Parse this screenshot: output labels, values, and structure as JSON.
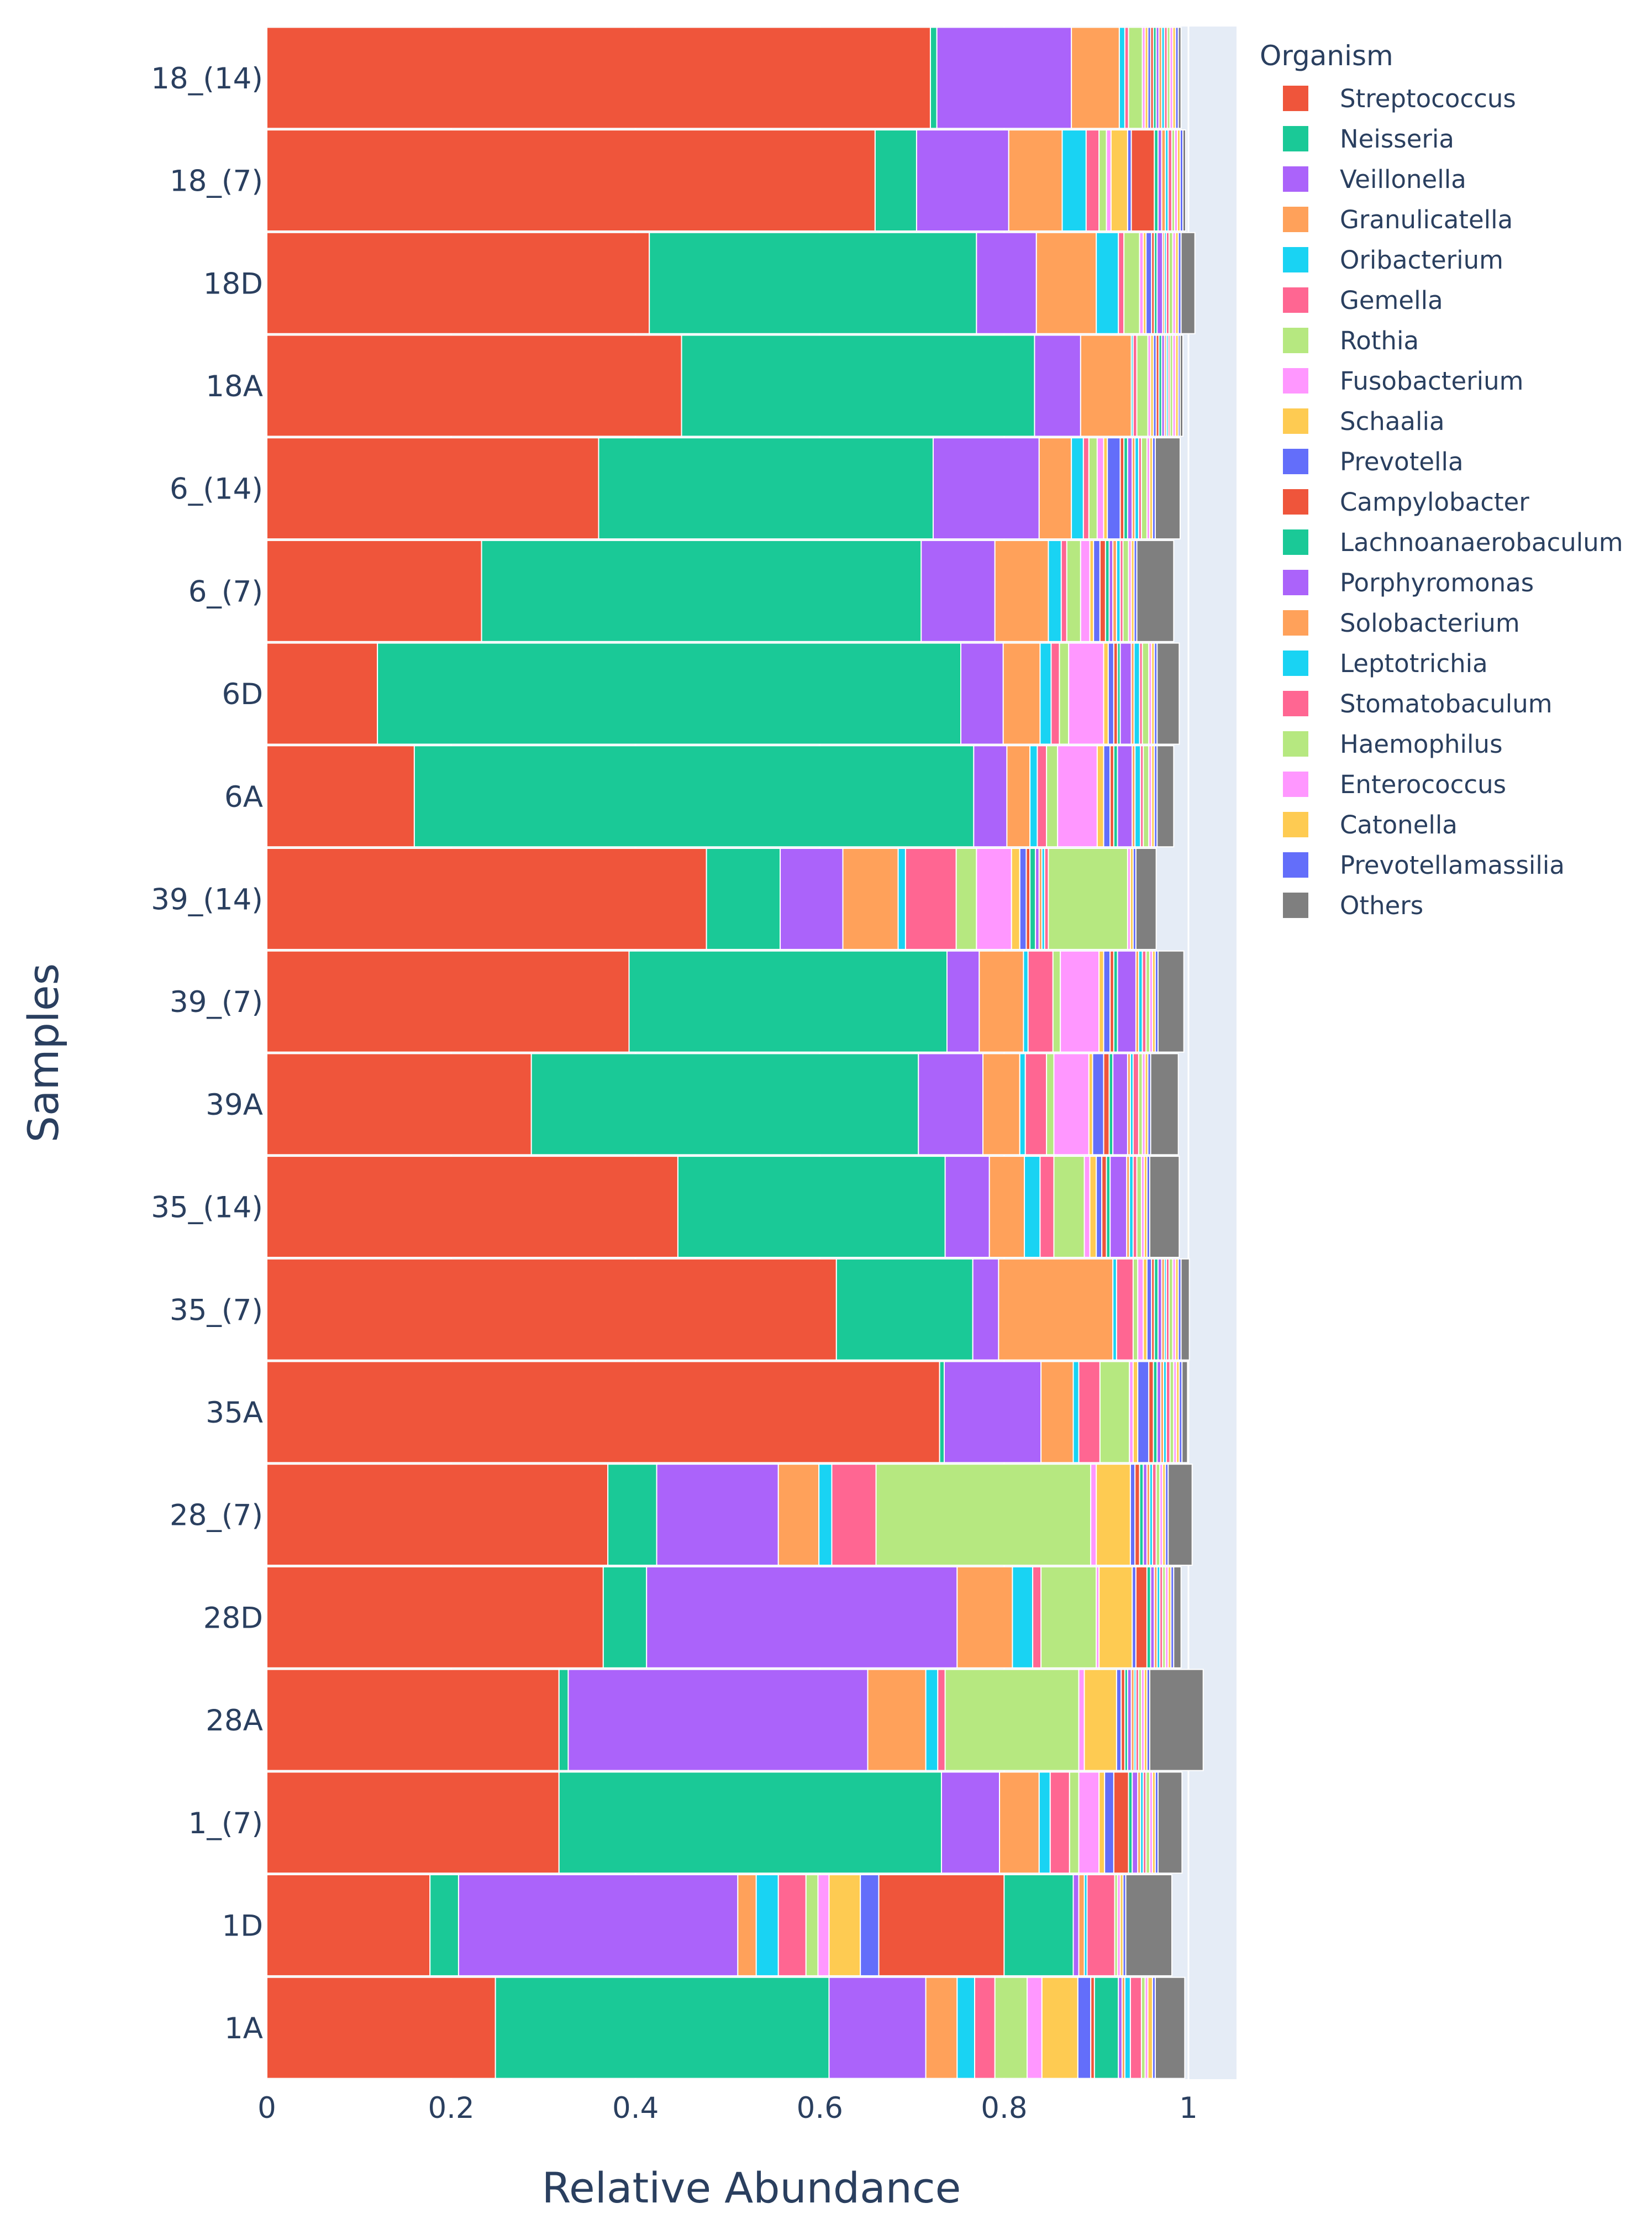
{
  "chart_data": {
    "type": "bar",
    "orientation": "horizontal",
    "stacked": true,
    "xlabel": "Relative Abundance",
    "ylabel": "Samples",
    "xlim": [
      0,
      1.05
    ],
    "xticks": [
      "0",
      "0.2",
      "0.4",
      "0.6",
      "0.8",
      "1"
    ],
    "xtick_values": [
      0,
      0.2,
      0.4,
      0.6,
      0.8,
      1
    ],
    "legend_title": "Organism",
    "legend_position": "right",
    "plot_background": "#e5ecf6",
    "categories": [
      "18_(14)",
      "18_(7)",
      "18D",
      "18A",
      "6_(14)",
      "6_(7)",
      "6D",
      "6A",
      "39_(14)",
      "39_(7)",
      "39A",
      "35_(14)",
      "35_(7)",
      "35A",
      "28_(7)",
      "28D",
      "28A",
      "1_(7)",
      "1D",
      "1A"
    ],
    "series": [
      {
        "name": "Streptococcus",
        "color": "#EF553B",
        "values": [
          0.72,
          0.66,
          0.415,
          0.45,
          0.36,
          0.233,
          0.12,
          0.16,
          0.477,
          0.393,
          0.287,
          0.446,
          0.618,
          0.73,
          0.37,
          0.365,
          0.317,
          0.317,
          0.177,
          0.248
        ]
      },
      {
        "name": "Neisseria",
        "color": "#1ac997",
        "values": [
          0.007,
          0.045,
          0.355,
          0.383,
          0.363,
          0.477,
          0.633,
          0.607,
          0.08,
          0.345,
          0.42,
          0.29,
          0.148,
          0.005,
          0.053,
          0.047,
          0.01,
          0.415,
          0.031,
          0.362
        ]
      },
      {
        "name": "Veillonella",
        "color": "#ab63fa",
        "values": [
          0.146,
          0.1,
          0.065,
          0.05,
          0.115,
          0.08,
          0.046,
          0.036,
          0.068,
          0.035,
          0.07,
          0.048,
          0.028,
          0.105,
          0.132,
          0.337,
          0.325,
          0.063,
          0.303,
          0.105
        ]
      },
      {
        "name": "Granulicatella",
        "color": "#FFA15A",
        "values": [
          0.052,
          0.058,
          0.065,
          0.055,
          0.035,
          0.058,
          0.04,
          0.025,
          0.06,
          0.048,
          0.04,
          0.038,
          0.124,
          0.035,
          0.044,
          0.06,
          0.063,
          0.043,
          0.02,
          0.034
        ]
      },
      {
        "name": "Oribacterium",
        "color": "#19d3f3",
        "values": [
          0.006,
          0.026,
          0.024,
          0.002,
          0.013,
          0.014,
          0.012,
          0.008,
          0.008,
          0.005,
          0.006,
          0.017,
          0.004,
          0.006,
          0.014,
          0.022,
          0.013,
          0.012,
          0.024,
          0.019
        ]
      },
      {
        "name": "Gemella",
        "color": "#FF6692",
        "values": [
          0.004,
          0.014,
          0.006,
          0.004,
          0.006,
          0.006,
          0.009,
          0.01,
          0.055,
          0.027,
          0.023,
          0.015,
          0.018,
          0.023,
          0.048,
          0.009,
          0.008,
          0.021,
          0.03,
          0.022
        ]
      },
      {
        "name": "Rothia",
        "color": "#B6E880",
        "values": [
          0.015,
          0.008,
          0.017,
          0.012,
          0.009,
          0.015,
          0.01,
          0.012,
          0.022,
          0.008,
          0.008,
          0.033,
          0.005,
          0.032,
          0.233,
          0.06,
          0.145,
          0.01,
          0.013,
          0.035
        ]
      },
      {
        "name": "Fusobacterium",
        "color": "#FF97FF",
        "values": [
          0.003,
          0.005,
          0.004,
          0.003,
          0.007,
          0.01,
          0.038,
          0.043,
          0.038,
          0.042,
          0.038,
          0.006,
          0.006,
          0.004,
          0.006,
          0.003,
          0.006,
          0.022,
          0.012,
          0.016
        ]
      },
      {
        "name": "Schaalia",
        "color": "#FECB52",
        "values": [
          0.003,
          0.018,
          0.003,
          0.003,
          0.004,
          0.004,
          0.005,
          0.007,
          0.009,
          0.005,
          0.004,
          0.007,
          0.004,
          0.005,
          0.037,
          0.036,
          0.035,
          0.006,
          0.034,
          0.039
        ]
      },
      {
        "name": "Prevotella",
        "color": "#636efa",
        "values": [
          0.003,
          0.004,
          0.006,
          0.003,
          0.014,
          0.007,
          0.006,
          0.007,
          0.007,
          0.007,
          0.012,
          0.006,
          0.005,
          0.012,
          0.005,
          0.004,
          0.005,
          0.01,
          0.02,
          0.014
        ]
      },
      {
        "name": "Campylobacter",
        "color": "#EF553B",
        "values": [
          0.003,
          0.025,
          0.003,
          0.003,
          0.004,
          0.006,
          0.004,
          0.004,
          0.004,
          0.004,
          0.006,
          0.005,
          0.003,
          0.005,
          0.005,
          0.012,
          0.004,
          0.016,
          0.136,
          0.004
        ]
      },
      {
        "name": "Lachnoanaerobaculum",
        "color": "#1ac997",
        "values": [
          0.003,
          0.004,
          0.003,
          0.003,
          0.004,
          0.004,
          0.003,
          0.004,
          0.006,
          0.004,
          0.004,
          0.004,
          0.004,
          0.004,
          0.004,
          0.004,
          0.003,
          0.004,
          0.075,
          0.026
        ]
      },
      {
        "name": "Porphyromonas",
        "color": "#ab63fa",
        "values": [
          0.003,
          0.004,
          0.006,
          0.003,
          0.005,
          0.004,
          0.012,
          0.016,
          0.004,
          0.02,
          0.016,
          0.018,
          0.004,
          0.004,
          0.004,
          0.004,
          0.004,
          0.006,
          0.006,
          0.004
        ]
      },
      {
        "name": "Solobacterium",
        "color": "#FFA15A",
        "values": [
          0.003,
          0.004,
          0.002,
          0.002,
          0.003,
          0.004,
          0.003,
          0.003,
          0.003,
          0.003,
          0.003,
          0.003,
          0.003,
          0.003,
          0.003,
          0.003,
          0.003,
          0.003,
          0.006,
          0.003
        ]
      },
      {
        "name": "Leptotrichia",
        "color": "#19d3f3",
        "values": [
          0.003,
          0.003,
          0.002,
          0.002,
          0.004,
          0.004,
          0.006,
          0.006,
          0.003,
          0.004,
          0.003,
          0.004,
          0.002,
          0.003,
          0.003,
          0.003,
          0.002,
          0.003,
          0.003,
          0.006
        ]
      },
      {
        "name": "Stomatobaculum",
        "color": "#FF6692",
        "values": [
          0.003,
          0.004,
          0.003,
          0.002,
          0.003,
          0.003,
          0.003,
          0.003,
          0.004,
          0.004,
          0.006,
          0.004,
          0.003,
          0.004,
          0.004,
          0.003,
          0.003,
          0.003,
          0.03,
          0.012
        ]
      },
      {
        "name": "Haemophilus",
        "color": "#B6E880",
        "values": [
          0.003,
          0.003,
          0.004,
          0.003,
          0.006,
          0.006,
          0.007,
          0.006,
          0.086,
          0.004,
          0.004,
          0.005,
          0.004,
          0.004,
          0.004,
          0.003,
          0.003,
          0.004,
          0.003,
          0.004
        ]
      },
      {
        "name": "Enterococcus",
        "color": "#FF97FF",
        "values": [
          0.003,
          0.003,
          0.003,
          0.003,
          0.003,
          0.003,
          0.003,
          0.003,
          0.003,
          0.003,
          0.003,
          0.003,
          0.003,
          0.003,
          0.003,
          0.003,
          0.003,
          0.003,
          0.003,
          0.003
        ]
      },
      {
        "name": "Catonella",
        "color": "#FECB52",
        "values": [
          0.003,
          0.003,
          0.003,
          0.003,
          0.003,
          0.003,
          0.003,
          0.003,
          0.003,
          0.003,
          0.003,
          0.003,
          0.003,
          0.003,
          0.003,
          0.003,
          0.003,
          0.003,
          0.003,
          0.005
        ]
      },
      {
        "name": "Prevotellamassilia",
        "color": "#636efa",
        "values": [
          0.003,
          0.003,
          0.003,
          0.002,
          0.003,
          0.003,
          0.003,
          0.003,
          0.003,
          0.003,
          0.003,
          0.003,
          0.003,
          0.003,
          0.003,
          0.003,
          0.003,
          0.003,
          0.003,
          0.003
        ]
      },
      {
        "name": "Others",
        "color": "#7f7f7f",
        "values": [
          0.003,
          0.003,
          0.015,
          0.003,
          0.027,
          0.04,
          0.024,
          0.018,
          0.022,
          0.028,
          0.03,
          0.032,
          0.009,
          0.006,
          0.026,
          0.008,
          0.058,
          0.026,
          0.05,
          0.032
        ]
      }
    ]
  }
}
